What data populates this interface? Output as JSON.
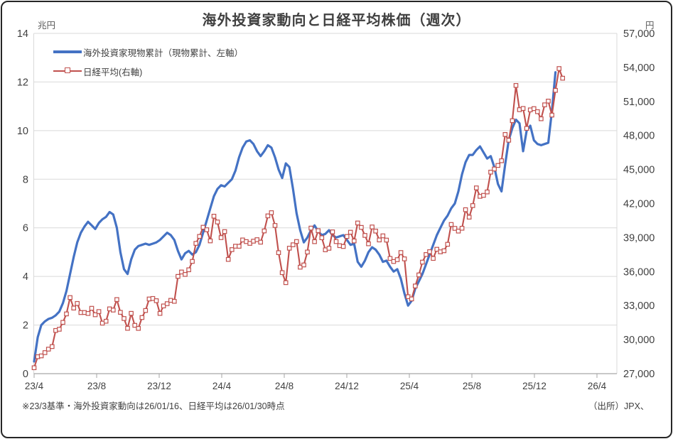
{
  "title": "海外投資家動向と日経平均株価（週次）",
  "axes": {
    "left_unit": "兆円",
    "right_unit": "円"
  },
  "legend": [
    {
      "label": "海外投資家現物累計（現物累計、左軸）",
      "color": "#4472C4",
      "marker": "line"
    },
    {
      "label": "日経平均(右軸)",
      "color": "#C0504D",
      "marker": "open-square-line"
    }
  ],
  "footnote": "※23/3基準・海外投資家動向は26/01/16、日経平均は26/01/30時点",
  "source": "（出所）JPX、",
  "chart_data": {
    "type": "line",
    "frequency": "weekly",
    "title": "海外投資家動向と日経平均株価（週次）",
    "x_tick_labels": [
      "23/4",
      "23/8",
      "23/12",
      "24/4",
      "24/8",
      "24/12",
      "25/4",
      "25/8",
      "25/12",
      "26/4"
    ],
    "left_axis": {
      "unit": "兆円",
      "ylim": [
        0,
        14
      ],
      "tick_step": 2,
      "tick_labels": [
        "14",
        "12",
        "10",
        "8",
        "6",
        "4",
        "2",
        "0"
      ]
    },
    "right_axis": {
      "unit": "円",
      "ylim": [
        27000,
        57000
      ],
      "tick_step": 3000,
      "tick_labels": [
        "57,000",
        "54,000",
        "51,000",
        "48,000",
        "45,000",
        "42,000",
        "39,000",
        "36,000",
        "33,000",
        "30,000",
        "27,000"
      ]
    },
    "grid": "horizontal",
    "legend_position": "top-left-inside",
    "series": [
      {
        "name": "海外投資家現物累計（現物累計、左軸）",
        "axis": "left",
        "color": "#4472C4",
        "unit": "兆円",
        "marker": "none",
        "values": [
          0.5,
          1.5,
          2.0,
          2.15,
          2.25,
          2.3,
          2.4,
          2.55,
          2.9,
          3.4,
          4.1,
          4.8,
          5.4,
          5.8,
          6.05,
          6.25,
          6.1,
          5.95,
          6.2,
          6.35,
          6.45,
          6.65,
          6.55,
          6.0,
          5.0,
          4.3,
          4.1,
          4.7,
          5.1,
          5.25,
          5.3,
          5.35,
          5.3,
          5.35,
          5.4,
          5.5,
          5.65,
          5.8,
          5.7,
          5.5,
          5.05,
          4.7,
          4.95,
          5.05,
          4.9,
          5.0,
          5.3,
          5.8,
          6.3,
          6.8,
          7.3,
          7.6,
          7.75,
          7.7,
          7.85,
          8.0,
          8.35,
          8.9,
          9.3,
          9.55,
          9.6,
          9.45,
          9.15,
          8.95,
          9.15,
          9.4,
          9.3,
          8.9,
          8.4,
          8.05,
          8.65,
          8.5,
          7.6,
          6.6,
          5.9,
          5.4,
          5.6,
          5.9,
          6.1,
          5.85,
          5.7,
          5.75,
          5.9,
          5.7,
          5.6,
          5.65,
          5.7,
          5.5,
          5.3,
          5.35,
          4.6,
          4.4,
          4.65,
          5.0,
          5.2,
          5.1,
          4.9,
          4.6,
          4.65,
          4.4,
          4.2,
          4.3,
          3.9,
          3.3,
          2.8,
          3.0,
          3.5,
          3.8,
          4.1,
          4.5,
          4.9,
          5.3,
          5.7,
          6.0,
          6.3,
          6.5,
          6.8,
          7.0,
          7.5,
          8.2,
          8.7,
          9.0,
          9.0,
          9.2,
          9.35,
          9.1,
          8.85,
          8.95,
          8.5,
          7.8,
          7.5,
          8.6,
          9.6,
          10.1,
          10.45,
          10.3,
          9.15,
          10.0,
          10.2,
          9.6,
          9.45,
          9.4,
          9.45,
          9.5,
          10.8,
          12.4
        ]
      },
      {
        "name": "日経平均(右軸)",
        "axis": "right",
        "color": "#C0504D",
        "unit": "円",
        "marker": "open-square",
        "values": [
          27518,
          28493,
          28564,
          28856,
          29158,
          29388,
          30808,
          30916,
          31524,
          32265,
          33706,
          32781,
          33189,
          32388,
          32391,
          32304,
          32759,
          32193,
          32474,
          31451,
          31624,
          32711,
          32607,
          33533,
          32402,
          31858,
          30995,
          32316,
          31259,
          30992,
          31950,
          32568,
          33585,
          33626,
          33432,
          32308,
          32971,
          33169,
          33464,
          33377,
          35577,
          35963,
          35751,
          36158,
          36897,
          38487,
          39099,
          39911,
          39689,
          38708,
          40888,
          40369,
          38992,
          39524,
          37068,
          37935,
          38236,
          38229,
          38787,
          38646,
          38487,
          38683,
          38814,
          38596,
          39583,
          40912,
          41190,
          40063,
          37667,
          35909,
          35025,
          38062,
          38364,
          38648,
          36391,
          36582,
          37723,
          39830,
          38636,
          39606,
          38982,
          37914,
          38054,
          39501,
          38643,
          38284,
          38208,
          39091,
          39470,
          38702,
          40281,
          39895,
          39190,
          38451,
          39932,
          39572,
          38787,
          39149,
          38776,
          37156,
          36887,
          37053,
          37677,
          37120,
          33781,
          33586,
          34730,
          35706,
          36830,
          37503,
          37754,
          37160,
          37965,
          37742,
          37834,
          38403,
          40151,
          39811,
          39570,
          39819,
          41456,
          40800,
          41820,
          43378,
          42633,
          42718,
          43020,
          44768,
          45045,
          45354,
          45770,
          48090,
          47580,
          49300,
          52411,
          50276,
          50377,
          48626,
          50253,
          50369,
          50100,
          49470,
          50700,
          51030,
          49800,
          51975,
          53900,
          53050
        ]
      }
    ],
    "annotations": {
      "footnote": "※23/3基準・海外投資家動向は26/01/16、日経平均は26/01/30時点",
      "source": "（出所）JPX、"
    }
  }
}
